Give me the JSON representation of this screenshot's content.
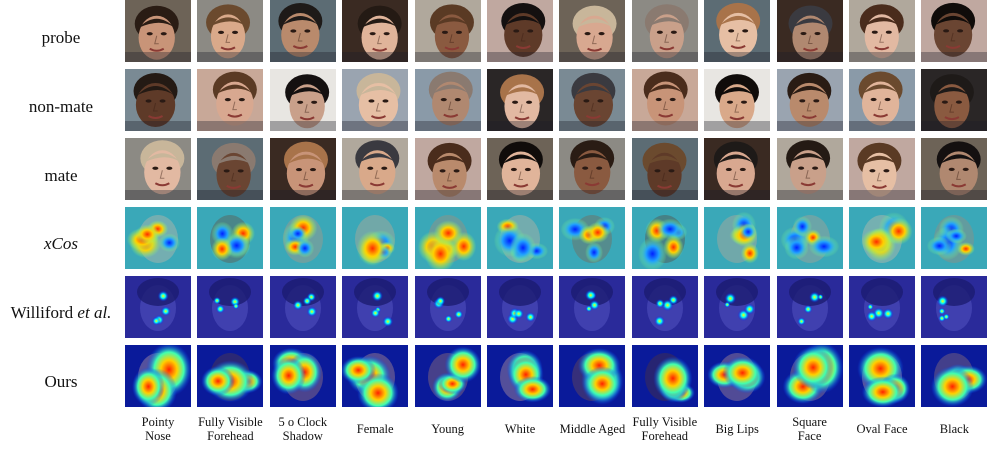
{
  "rows": [
    {
      "label": "probe",
      "kind": "photo"
    },
    {
      "label": "non-mate",
      "kind": "photo"
    },
    {
      "label": "mate",
      "kind": "photo"
    },
    {
      "label": "xCos",
      "kind": "xcos",
      "italic": true
    },
    {
      "label_prefix": "Williford ",
      "label_em": "et al.",
      "kind": "williford"
    },
    {
      "label": "Ours",
      "kind": "ours"
    }
  ],
  "columns": [
    "Pointy\nNose",
    "Fully Visible\nForehead",
    "5 o Clock\nShadow",
    "Female",
    "Young",
    "White",
    "Middle Aged",
    "Fully Visible\nForehead",
    "Big Lips",
    "Square\nFace",
    "Oval Face",
    "Black"
  ],
  "colors": {
    "skin_tones": [
      "#c89478",
      "#d9a98a",
      "#b98a6c",
      "#e0b49a",
      "#8a5a40",
      "#5e3a28",
      "#d8a890",
      "#c9a08a",
      "#e6bfa4",
      "#b08870",
      "#e2b9a2",
      "#6a4532"
    ],
    "hair_tones": [
      "#2a1c14",
      "#6b4a2e",
      "#1e1a18",
      "#241a14",
      "#5a3a24",
      "#141010",
      "#c8b69a",
      "#8a7a70",
      "#a8734a",
      "#3a3a40",
      "#4a2c1c",
      "#100c0a"
    ],
    "backgrounds": [
      "#6d6357",
      "#7a8a94",
      "#8c8a84",
      "#c8a898",
      "#5c6c74",
      "#e8e6e2",
      "#3a2a22",
      "#9aa4b0",
      "#b0a89c",
      "#8a9aa8",
      "#c0a8a0",
      "#2a2626"
    ],
    "williford_base": "#2a2a9a",
    "jet": [
      "#00007f",
      "#0000ff",
      "#0080ff",
      "#00ffff",
      "#80ff80",
      "#ffff00",
      "#ff8000",
      "#ff0000",
      "#7f0000"
    ]
  }
}
